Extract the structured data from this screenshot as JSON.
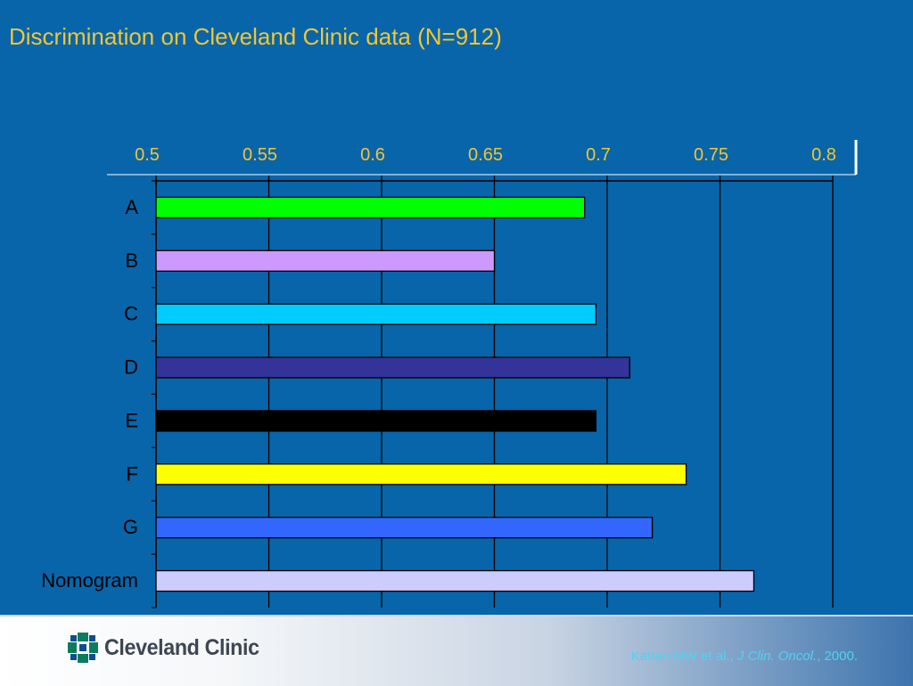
{
  "title": "Discrimination on Cleveland Clinic data (N=912)",
  "colors": {
    "background": "#0865a9",
    "title": "#f3c532",
    "axis_text": "#ffffff",
    "axis_label_color": "#f3c532",
    "footer_citation": "#4dd3f3"
  },
  "chart_data": {
    "type": "bar",
    "orientation": "horizontal",
    "x_axis_position": "top",
    "xlim": [
      0.5,
      0.8
    ],
    "x_ticks": [
      "0.5",
      "0.55",
      "0.6",
      "0.65",
      "0.7",
      "0.75",
      "0.8"
    ],
    "grid": "vertical",
    "categories": [
      "A",
      "B",
      "C",
      "D",
      "E",
      "F",
      "G",
      "Nomogram"
    ],
    "values": [
      0.69,
      0.65,
      0.695,
      0.71,
      0.695,
      0.735,
      0.72,
      0.765
    ],
    "bar_colors": [
      "#00ff00",
      "#cc99ff",
      "#00ccff",
      "#333399",
      "#000000",
      "#ffff00",
      "#3366ff",
      "#ccccff"
    ]
  },
  "footer": {
    "logo_text": "Cleveland Clinic",
    "citation_authors": "Kattan MW et al., ",
    "citation_journal": "J Clin. Oncol.",
    "citation_year": ", 2000."
  }
}
